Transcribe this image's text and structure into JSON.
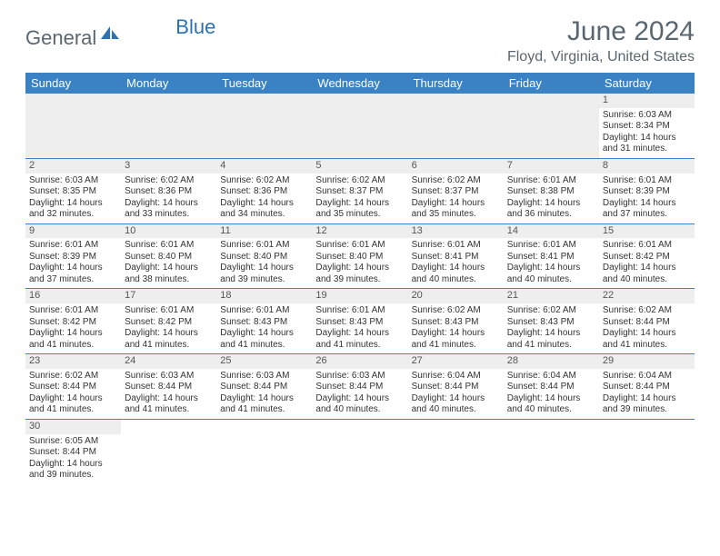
{
  "logo": {
    "text1": "General",
    "text2": "Blue"
  },
  "title": "June 2024",
  "location": "Floyd, Virginia, United States",
  "dow": [
    "Sunday",
    "Monday",
    "Tuesday",
    "Wednesday",
    "Thursday",
    "Friday",
    "Saturday"
  ],
  "colors": {
    "header_bg": "#3b82c4",
    "header_fg": "#ffffff",
    "stripe": "#eeeeee",
    "text_muted": "#5a6770",
    "accent": "#2a72b5"
  },
  "weeks": [
    [
      null,
      null,
      null,
      null,
      null,
      null,
      {
        "n": "1",
        "rise": "6:03 AM",
        "set": "8:34 PM",
        "dh": "14",
        "dm": "31"
      }
    ],
    [
      {
        "n": "2",
        "rise": "6:03 AM",
        "set": "8:35 PM",
        "dh": "14",
        "dm": "32"
      },
      {
        "n": "3",
        "rise": "6:02 AM",
        "set": "8:36 PM",
        "dh": "14",
        "dm": "33"
      },
      {
        "n": "4",
        "rise": "6:02 AM",
        "set": "8:36 PM",
        "dh": "14",
        "dm": "34"
      },
      {
        "n": "5",
        "rise": "6:02 AM",
        "set": "8:37 PM",
        "dh": "14",
        "dm": "35"
      },
      {
        "n": "6",
        "rise": "6:02 AM",
        "set": "8:37 PM",
        "dh": "14",
        "dm": "35"
      },
      {
        "n": "7",
        "rise": "6:01 AM",
        "set": "8:38 PM",
        "dh": "14",
        "dm": "36"
      },
      {
        "n": "8",
        "rise": "6:01 AM",
        "set": "8:39 PM",
        "dh": "14",
        "dm": "37"
      }
    ],
    [
      {
        "n": "9",
        "rise": "6:01 AM",
        "set": "8:39 PM",
        "dh": "14",
        "dm": "37"
      },
      {
        "n": "10",
        "rise": "6:01 AM",
        "set": "8:40 PM",
        "dh": "14",
        "dm": "38"
      },
      {
        "n": "11",
        "rise": "6:01 AM",
        "set": "8:40 PM",
        "dh": "14",
        "dm": "39"
      },
      {
        "n": "12",
        "rise": "6:01 AM",
        "set": "8:40 PM",
        "dh": "14",
        "dm": "39"
      },
      {
        "n": "13",
        "rise": "6:01 AM",
        "set": "8:41 PM",
        "dh": "14",
        "dm": "40"
      },
      {
        "n": "14",
        "rise": "6:01 AM",
        "set": "8:41 PM",
        "dh": "14",
        "dm": "40"
      },
      {
        "n": "15",
        "rise": "6:01 AM",
        "set": "8:42 PM",
        "dh": "14",
        "dm": "40"
      }
    ],
    [
      {
        "n": "16",
        "rise": "6:01 AM",
        "set": "8:42 PM",
        "dh": "14",
        "dm": "41"
      },
      {
        "n": "17",
        "rise": "6:01 AM",
        "set": "8:42 PM",
        "dh": "14",
        "dm": "41"
      },
      {
        "n": "18",
        "rise": "6:01 AM",
        "set": "8:43 PM",
        "dh": "14",
        "dm": "41"
      },
      {
        "n": "19",
        "rise": "6:01 AM",
        "set": "8:43 PM",
        "dh": "14",
        "dm": "41"
      },
      {
        "n": "20",
        "rise": "6:02 AM",
        "set": "8:43 PM",
        "dh": "14",
        "dm": "41"
      },
      {
        "n": "21",
        "rise": "6:02 AM",
        "set": "8:43 PM",
        "dh": "14",
        "dm": "41"
      },
      {
        "n": "22",
        "rise": "6:02 AM",
        "set": "8:44 PM",
        "dh": "14",
        "dm": "41"
      }
    ],
    [
      {
        "n": "23",
        "rise": "6:02 AM",
        "set": "8:44 PM",
        "dh": "14",
        "dm": "41"
      },
      {
        "n": "24",
        "rise": "6:03 AM",
        "set": "8:44 PM",
        "dh": "14",
        "dm": "41"
      },
      {
        "n": "25",
        "rise": "6:03 AM",
        "set": "8:44 PM",
        "dh": "14",
        "dm": "41"
      },
      {
        "n": "26",
        "rise": "6:03 AM",
        "set": "8:44 PM",
        "dh": "14",
        "dm": "40"
      },
      {
        "n": "27",
        "rise": "6:04 AM",
        "set": "8:44 PM",
        "dh": "14",
        "dm": "40"
      },
      {
        "n": "28",
        "rise": "6:04 AM",
        "set": "8:44 PM",
        "dh": "14",
        "dm": "40"
      },
      {
        "n": "29",
        "rise": "6:04 AM",
        "set": "8:44 PM",
        "dh": "14",
        "dm": "39"
      }
    ],
    [
      {
        "n": "30",
        "rise": "6:05 AM",
        "set": "8:44 PM",
        "dh": "14",
        "dm": "39"
      },
      null,
      null,
      null,
      null,
      null,
      null
    ]
  ],
  "labels": {
    "sunrise": "Sunrise:",
    "sunset": "Sunset:",
    "daylight1a": "Daylight:",
    "daylight1b": "hours",
    "daylight2a": "and",
    "daylight2b": "minutes."
  }
}
